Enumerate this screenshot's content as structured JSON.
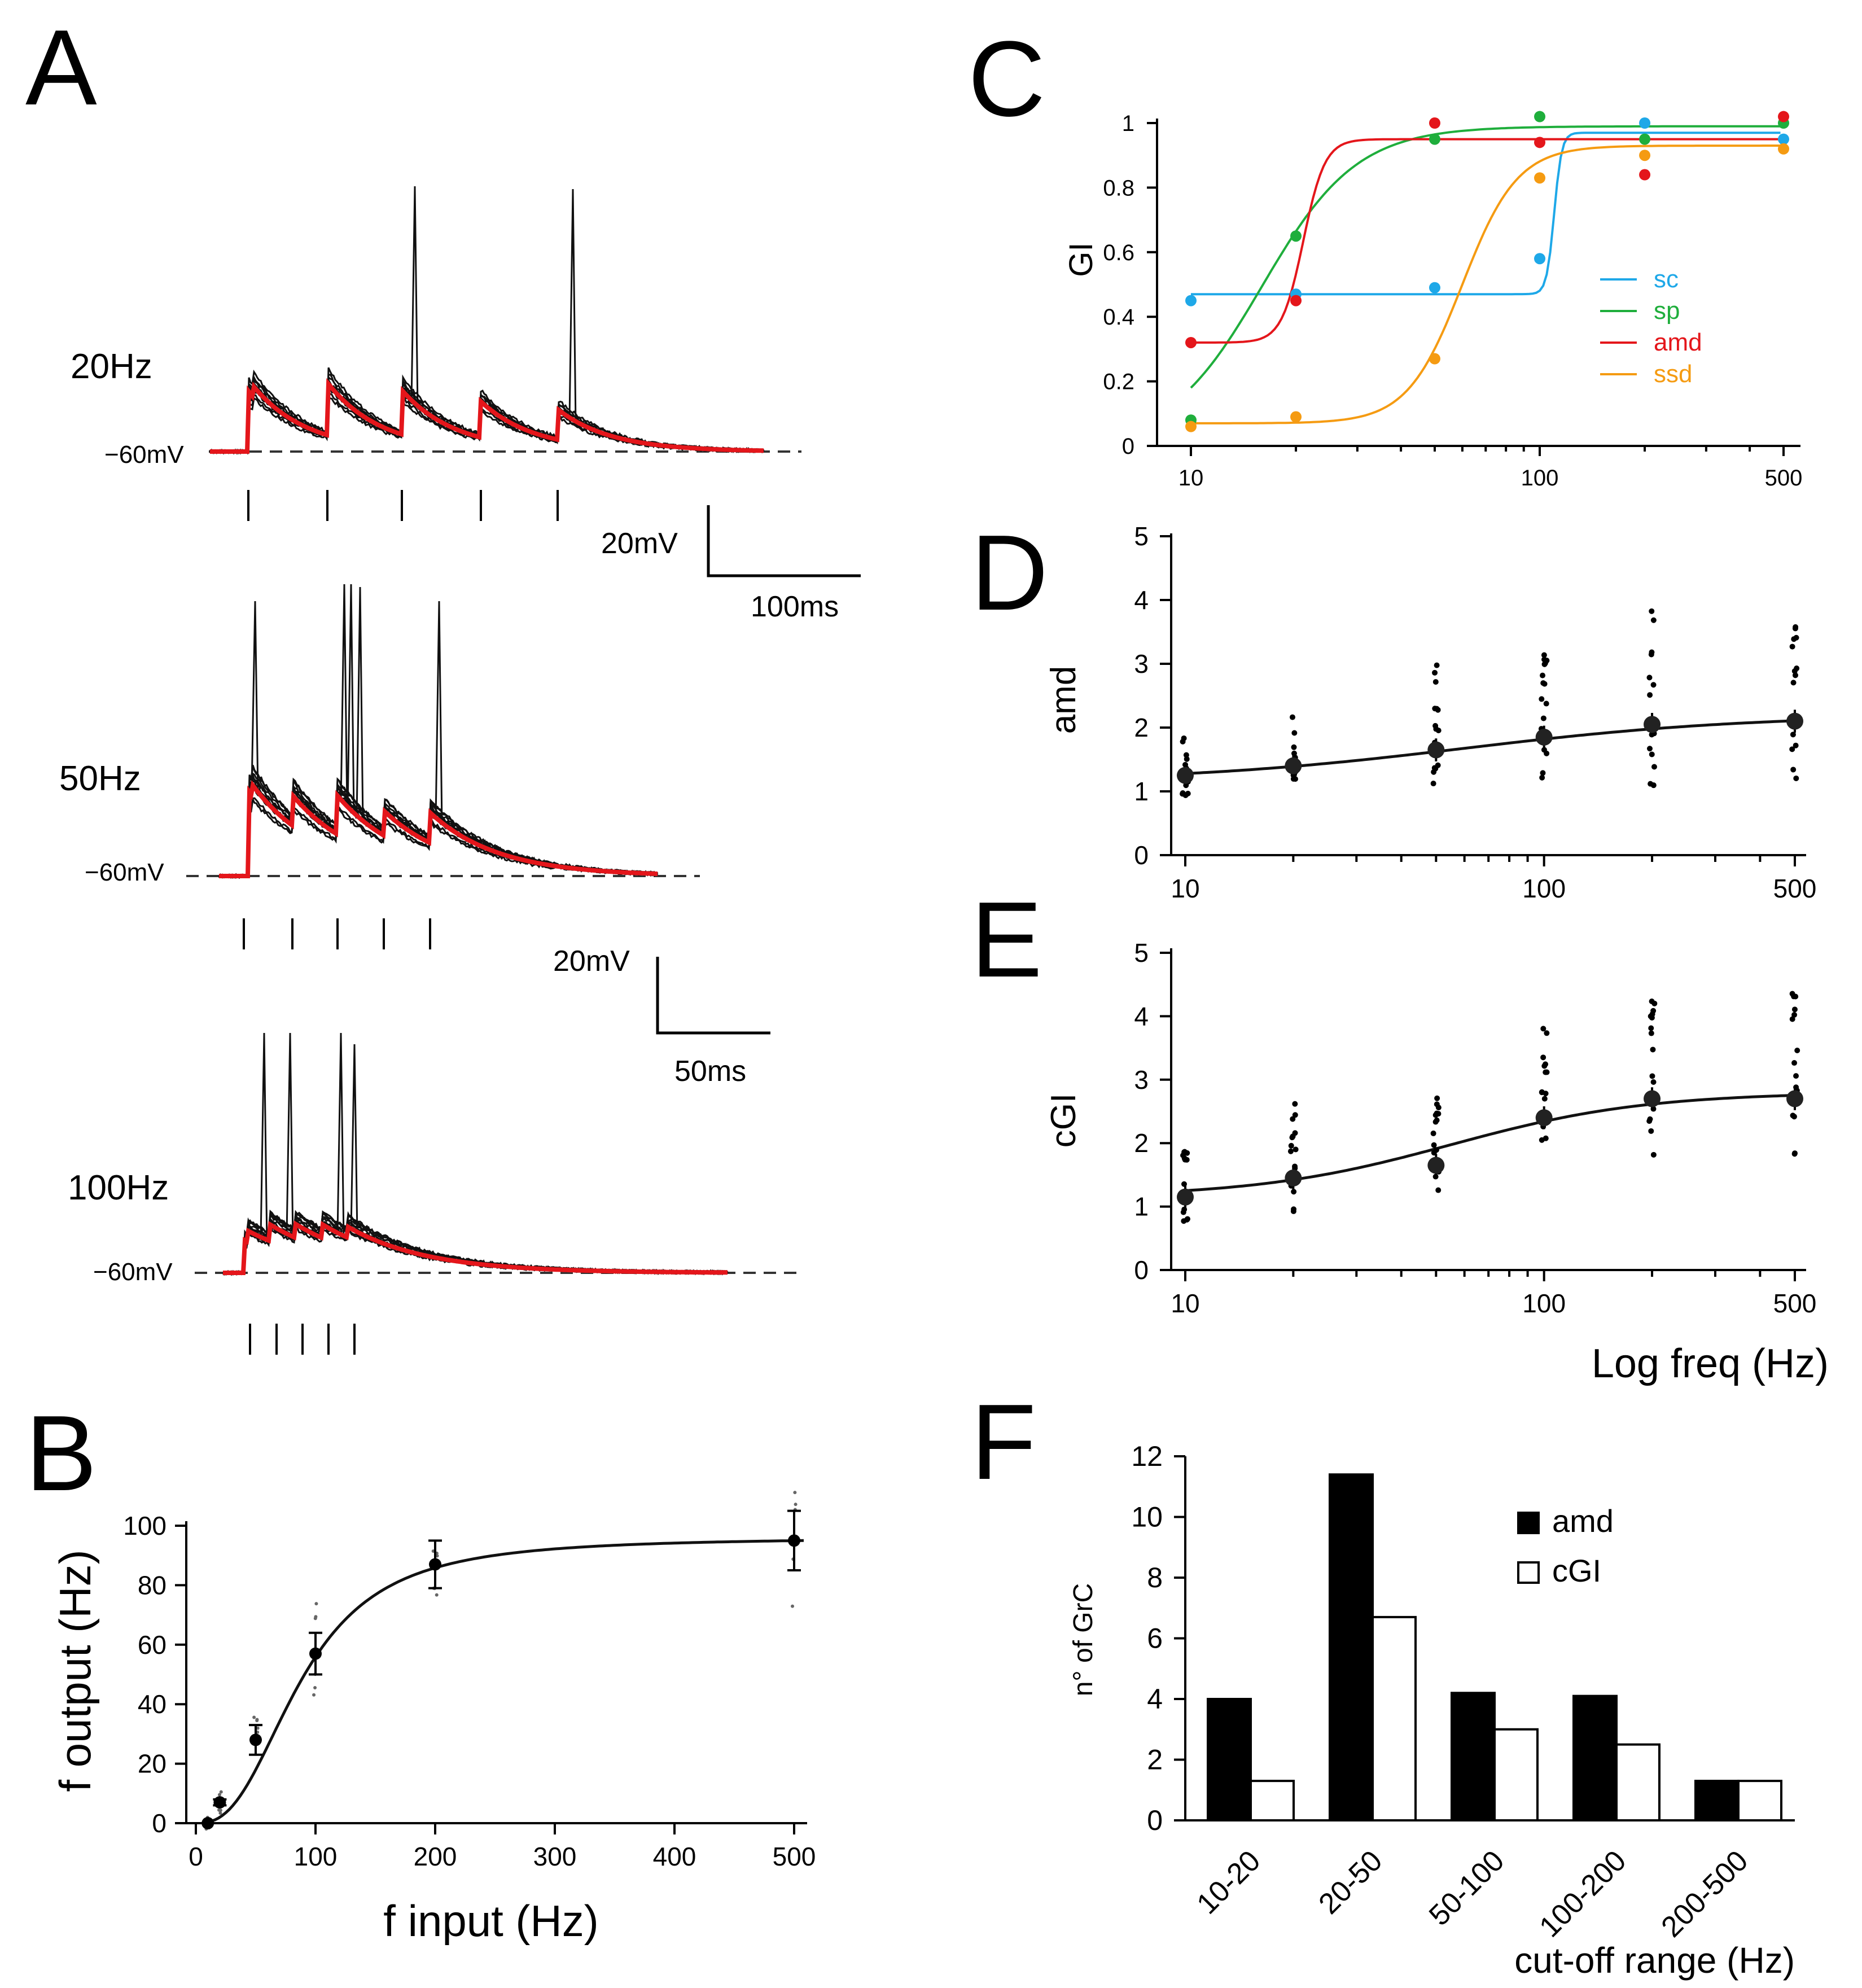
{
  "panel_letters": {
    "A": "A",
    "B": "B",
    "C": "C",
    "D": "D",
    "E": "E",
    "F": "F"
  },
  "panelA": {
    "rows": [
      {
        "label": "20Hz",
        "vm": "−60mV",
        "scale_v": "20mV",
        "scale_t": "100ms",
        "n_stim": 5
      },
      {
        "label": "50Hz",
        "vm": "−60mV",
        "scale_v": "20mV",
        "scale_t": "50ms",
        "n_stim": 5
      },
      {
        "label": "100Hz",
        "vm": "−60mV",
        "n_stim": 5
      }
    ],
    "colors": {
      "raw": "#111111",
      "average": "#e4161b"
    }
  },
  "chart_data": [
    {
      "id": "B",
      "type": "scatter",
      "xlabel": "f input (Hz)",
      "ylabel": "f output (Hz)",
      "xlim": [
        0,
        520
      ],
      "ylim": [
        0,
        100
      ],
      "xticks": [
        "0",
        "100",
        "200",
        "300",
        "400",
        "500"
      ],
      "yticks": [
        "0",
        "20",
        "40",
        "60",
        "80",
        "100"
      ],
      "x": [
        10,
        20,
        50,
        100,
        200,
        500
      ],
      "means": [
        0,
        7,
        28,
        57,
        87,
        95
      ],
      "errors": [
        0,
        1,
        5,
        7,
        8,
        10
      ]
    },
    {
      "id": "C",
      "type": "line",
      "xscale": "log",
      "ylabel": "GI",
      "xlim": [
        10,
        500
      ],
      "ylim": [
        0,
        1
      ],
      "xticks": [
        "10",
        "100",
        "500"
      ],
      "yticks": [
        "0",
        "0.2",
        "0.4",
        "0.6",
        "0.8",
        "1"
      ],
      "x": [
        10,
        20,
        50,
        100,
        200,
        500
      ],
      "series": [
        {
          "name": "sc",
          "color": "#1ea8e8",
          "values": [
            0.45,
            0.47,
            0.49,
            0.58,
            1.0,
            0.95
          ]
        },
        {
          "name": "sp",
          "color": "#1fae3c",
          "values": [
            0.08,
            0.65,
            0.95,
            1.02,
            0.95,
            1.0
          ]
        },
        {
          "name": "amd",
          "color": "#e4161b",
          "values": [
            0.32,
            0.45,
            1.0,
            0.94,
            0.84,
            1.02
          ]
        },
        {
          "name": "ssd",
          "color": "#f59b12",
          "values": [
            0.06,
            0.09,
            0.27,
            0.83,
            0.9,
            0.92
          ]
        }
      ]
    },
    {
      "id": "D",
      "type": "scatter",
      "xscale": "log",
      "ylabel": "amd",
      "xlim": [
        10,
        500
      ],
      "ylim": [
        0,
        5
      ],
      "xticks": [
        "10",
        "100",
        "500"
      ],
      "yticks": [
        "0",
        "1",
        "2",
        "3",
        "4",
        "5"
      ],
      "x": [
        10,
        20,
        50,
        100,
        200,
        500
      ],
      "means": [
        1.25,
        1.4,
        1.65,
        1.85,
        2.05,
        2.1
      ]
    },
    {
      "id": "E",
      "type": "scatter",
      "xscale": "log",
      "ylabel": "cGI",
      "xlabel": "Log freq (Hz)",
      "xlim": [
        10,
        500
      ],
      "ylim": [
        0,
        5
      ],
      "xticks": [
        "10",
        "100",
        "500"
      ],
      "yticks": [
        "0",
        "1",
        "2",
        "3",
        "4",
        "5"
      ],
      "x": [
        10,
        20,
        50,
        100,
        200,
        500
      ],
      "means": [
        1.15,
        1.45,
        1.65,
        2.4,
        2.7,
        2.7
      ]
    },
    {
      "id": "F",
      "type": "bar",
      "ylabel": "n° of GrC",
      "xlabel": "cut-off range (Hz)",
      "ylim": [
        0,
        12
      ],
      "yticks": [
        "0",
        "2",
        "4",
        "6",
        "8",
        "10",
        "12"
      ],
      "categories": [
        "10-20",
        "20-50",
        "50-100",
        "100-200",
        "200-500"
      ],
      "series": [
        {
          "name": "amd",
          "fill": "#000000",
          "values": [
            4,
            11.4,
            4.2,
            4.1,
            1.3
          ]
        },
        {
          "name": "cGI",
          "fill": "#ffffff",
          "values": [
            1.3,
            6.7,
            3,
            2.5,
            1.3
          ]
        }
      ]
    }
  ]
}
